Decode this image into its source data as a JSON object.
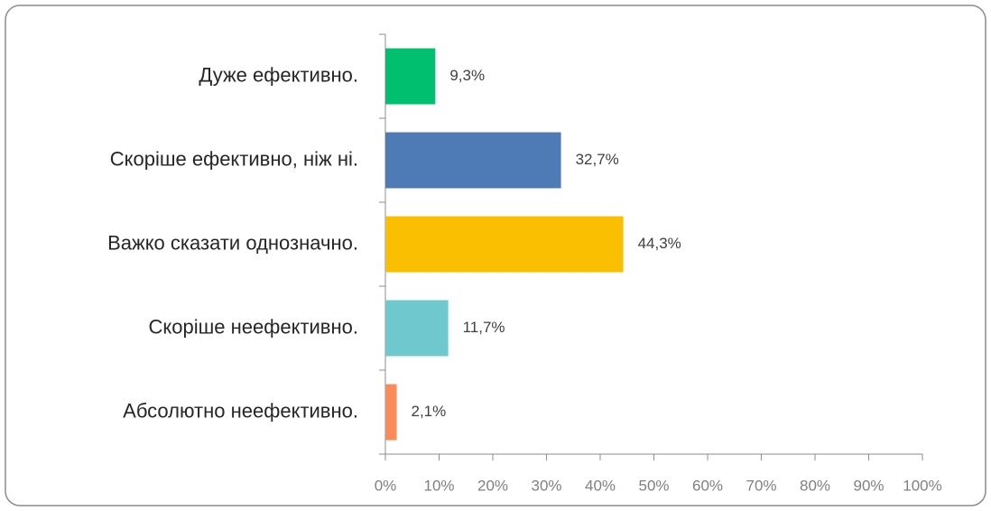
{
  "chart_data": {
    "type": "bar",
    "orientation": "horizontal",
    "categories": [
      "Дуже ефективно.",
      "Скоріше ефективно, ніж ні.",
      "Важко сказати однозначно.",
      "Скоріше неефективно.",
      "Абсолютно неефективно."
    ],
    "values": [
      9.3,
      32.7,
      44.3,
      11.7,
      2.1
    ],
    "value_labels": [
      "9,3%",
      "32,7%",
      "44,3%",
      "11,7%",
      "2,1%"
    ],
    "colors": [
      "#00bf6f",
      "#4e7ab5",
      "#f9bf00",
      "#6ec8cd",
      "#fc8b5b"
    ],
    "xlim": [
      0,
      100
    ],
    "xticks": [
      {
        "value": 0,
        "label": "0%"
      },
      {
        "value": 10,
        "label": "10%"
      },
      {
        "value": 20,
        "label": "20%"
      },
      {
        "value": 30,
        "label": "30%"
      },
      {
        "value": 40,
        "label": "40%"
      },
      {
        "value": 50,
        "label": "50%"
      },
      {
        "value": 60,
        "label": "60%"
      },
      {
        "value": 70,
        "label": "70%"
      },
      {
        "value": 80,
        "label": "80%"
      },
      {
        "value": 90,
        "label": "90%"
      },
      {
        "value": 100,
        "label": "100%"
      }
    ],
    "grid": false
  }
}
